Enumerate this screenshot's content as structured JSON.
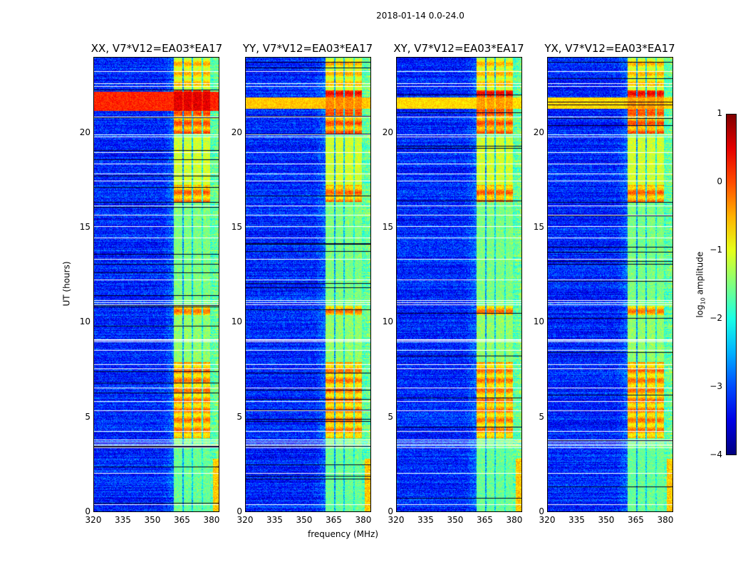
{
  "chart_data": {
    "type": "heatmap",
    "suptitle": "2018-01-14 0.0-24.0",
    "xlabel": "frequency (MHz)",
    "ylabel": "UT (hours)",
    "xlim": [
      320,
      384
    ],
    "ylim": [
      0,
      24
    ],
    "xticks": [
      320,
      335,
      350,
      365,
      380
    ],
    "yticks": [
      0,
      5,
      10,
      15,
      20
    ],
    "panels": [
      {
        "title": "XX, V7*V12=EA03*EA17",
        "broadband_event": {
          "hours": [
            21.2,
            22.2
          ],
          "log_amp": 0.2
        }
      },
      {
        "title": "YY, V7*V12=EA03*EA17",
        "broadband_event": {
          "hours": [
            21.3,
            21.9
          ],
          "log_amp": -0.6
        }
      },
      {
        "title": "XY, V7*V12=EA03*EA17",
        "broadband_event": {
          "hours": [
            21.3,
            21.9
          ],
          "log_amp": -0.7
        }
      },
      {
        "title": "YX, V7*V12=EA03*EA17",
        "broadband_event": {
          "hours": [
            21.3,
            21.9
          ],
          "log_amp": -0.7
        }
      }
    ],
    "background_log_amp": -3.2,
    "bright_channels_mhz": [
      [
        360.8,
        365.1
      ],
      [
        365.8,
        369.8
      ],
      [
        370.5,
        374.9
      ],
      [
        375.6,
        379.6
      ]
    ],
    "channel_log_amp_by_time": [
      {
        "hours": [
          0,
          3.4
        ],
        "log_amp": -1.6
      },
      {
        "hours": [
          3.9,
          7.9
        ],
        "log_amp": -0.5
      },
      {
        "hours": [
          8.0,
          10.4
        ],
        "log_amp": -1.4
      },
      {
        "hours": [
          10.4,
          10.9
        ],
        "log_amp": -0.5
      },
      {
        "hours": [
          11.3,
          16.4
        ],
        "log_amp": -1.5
      },
      {
        "hours": [
          16.4,
          17.3
        ],
        "log_amp": -0.4
      },
      {
        "hours": [
          17.3,
          19.8
        ],
        "log_amp": -1.1
      },
      {
        "hours": [
          20.0,
          21.2
        ],
        "log_amp": -0.3
      },
      {
        "hours": [
          21.2,
          22.3
        ],
        "log_amp": 0.1
      },
      {
        "hours": [
          22.3,
          24.0
        ],
        "log_amp": -0.8
      }
    ],
    "flagged_hours": [
      0.45,
      2.1,
      3.45,
      3.55,
      3.65,
      3.75,
      3.85,
      4.3,
      5.4,
      5.9,
      6.6,
      7.6,
      7.85,
      8.6,
      9.05,
      9.1,
      9.15,
      11.0,
      11.1,
      11.2,
      12.3,
      13.4,
      14.5,
      15.1,
      15.7,
      16.2,
      17.5,
      17.9,
      18.4,
      19.0,
      19.85,
      19.95,
      20.9,
      22.5,
      22.65,
      23.3
    ],
    "colorbar": {
      "label": "log10 amplitude",
      "label_base": "log",
      "label_sub": "10",
      "label_rest": " amplitude",
      "range": [
        -4,
        1
      ],
      "ticks": [
        "1",
        "0",
        "−1",
        "−2",
        "−3",
        "−4"
      ],
      "tick_values": [
        1,
        0,
        -1,
        -2,
        -3,
        -4
      ],
      "colormap": "jet"
    }
  }
}
